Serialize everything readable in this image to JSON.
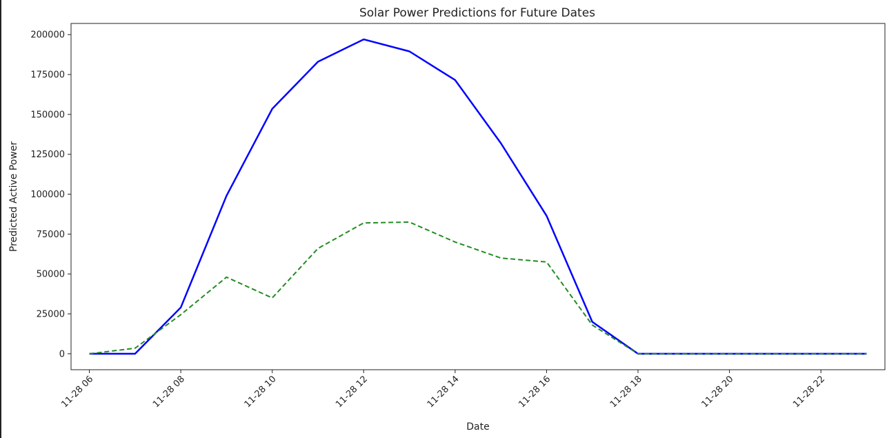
{
  "chart_data": {
    "type": "line",
    "title": "Solar Power Predictions for Future Dates",
    "xlabel": "Date",
    "ylabel": "Predicted Active Power",
    "x": [
      "11-28 06",
      "11-28 07",
      "11-28 08",
      "11-28 09",
      "11-28 10",
      "11-28 11",
      "11-28 12",
      "11-28 13",
      "11-28 14",
      "11-28 15",
      "11-28 16",
      "11-28 17",
      "11-28 18",
      "11-28 19",
      "11-28 20",
      "11-28 21",
      "11-28 22",
      "11-28 23"
    ],
    "x_hours": [
      6,
      7,
      8,
      9,
      10,
      11,
      12,
      13,
      14,
      15,
      16,
      17,
      18,
      19,
      20,
      21,
      22,
      23
    ],
    "xticks": [
      "11-28 06",
      "11-28 08",
      "11-28 10",
      "11-28 12",
      "11-28 14",
      "11-28 16",
      "11-28 18",
      "11-28 20",
      "11-28 22"
    ],
    "xtick_hours": [
      6,
      8,
      10,
      12,
      14,
      16,
      18,
      20,
      22
    ],
    "xlim": [
      5.6,
      23.4
    ],
    "yticks": [
      0,
      25000,
      50000,
      75000,
      100000,
      125000,
      150000,
      175000,
      200000
    ],
    "ylim": [
      -10000,
      207000
    ],
    "grid": false,
    "series": [
      {
        "color": "#0000ff",
        "style": "solid",
        "values": [
          0,
          0,
          29000,
          99000,
          153500,
          183000,
          197000,
          189500,
          171500,
          132000,
          86500,
          20000,
          0,
          0,
          0,
          0,
          0,
          0
        ]
      },
      {
        "color": "#228b22",
        "style": "dashed",
        "values": [
          0,
          3500,
          24500,
          48000,
          35000,
          66000,
          82000,
          82500,
          70000,
          60000,
          57500,
          18000,
          0,
          0,
          0,
          0,
          0,
          0
        ]
      }
    ]
  }
}
